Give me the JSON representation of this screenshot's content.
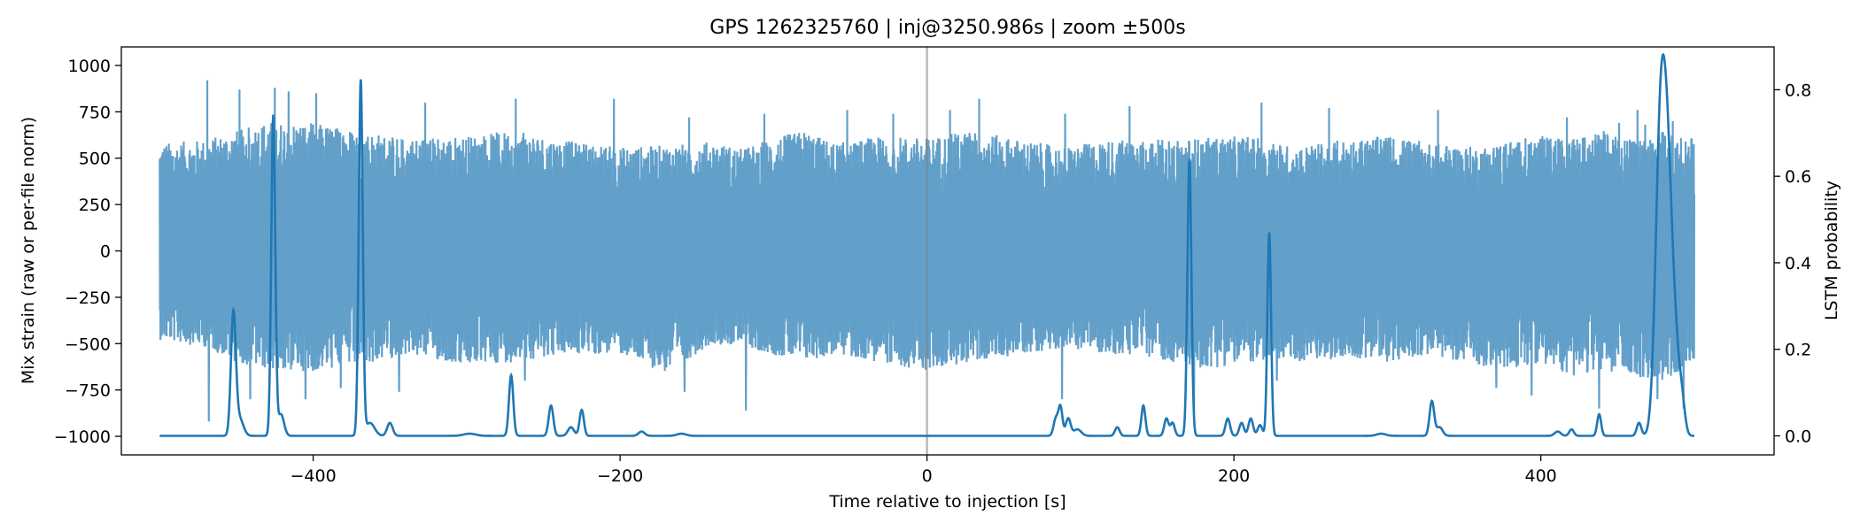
{
  "chart_data": {
    "type": "line",
    "title": "GPS 1262325760 | inj@3250.986s | zoom ±500s",
    "xlabel": "Time relative to injection [s]",
    "ylabel": "Mix strain (raw or per-file norm)",
    "y2label": "LSTM probability",
    "xlim": [
      -525,
      552
    ],
    "ylim": [
      -1100,
      1100
    ],
    "y2lim": [
      -0.044,
      0.899
    ],
    "x_ticks": [
      -400,
      -200,
      0,
      200,
      400
    ],
    "x_tick_labels": [
      "−400",
      "−200",
      "0",
      "200",
      "400"
    ],
    "y_ticks": [
      -1000,
      -750,
      -500,
      -250,
      0,
      250,
      500,
      750,
      1000
    ],
    "y_tick_labels": [
      "−1000",
      "−750",
      "−500",
      "−250",
      "0",
      "250",
      "500",
      "750",
      "1000"
    ],
    "y2_ticks": [
      0.0,
      0.2,
      0.4,
      0.6,
      0.8
    ],
    "y2_tick_labels": [
      "0.0",
      "0.2",
      "0.4",
      "0.6",
      "0.8"
    ],
    "grid": false,
    "injection_marker_x": 0,
    "series": [
      {
        "axis": "left",
        "color": "#1f77b4",
        "opacity": 0.7,
        "description_range": [
          -500,
          500
        ],
        "envelope_t": [
          -500,
          -470,
          -450,
          -430,
          -400,
          -370,
          -340,
          -300,
          -270,
          -240,
          -200,
          -170,
          -140,
          -120,
          -100,
          -80,
          -60,
          -30,
          0,
          30,
          60,
          90,
          120,
          150,
          180,
          210,
          240,
          270,
          300,
          330,
          360,
          380,
          400,
          420,
          440,
          460,
          480,
          500
        ],
        "envelope_max": [
          580,
          600,
          650,
          700,
          690,
          650,
          610,
          620,
          650,
          600,
          560,
          570,
          590,
          550,
          610,
          650,
          580,
          620,
          610,
          650,
          600,
          560,
          600,
          600,
          610,
          620,
          560,
          600,
          620,
          580,
          560,
          600,
          620,
          600,
          650,
          600,
          650,
          620
        ],
        "envelope_min": [
          -480,
          -520,
          -600,
          -640,
          -650,
          -620,
          -560,
          -620,
          -600,
          -560,
          -560,
          -660,
          -500,
          -520,
          -560,
          -600,
          -560,
          -600,
          -650,
          -600,
          -560,
          -520,
          -560,
          -580,
          -640,
          -600,
          -600,
          -580,
          -600,
          -560,
          -620,
          -640,
          -600,
          -680,
          -640,
          -680,
          -700,
          -600
        ],
        "spikes": [
          {
            "t": -469,
            "y": 920
          },
          {
            "t": -468,
            "y": -920
          },
          {
            "t": -448,
            "y": 870
          },
          {
            "t": -441,
            "y": -800
          },
          {
            "t": -425,
            "y": 880
          },
          {
            "t": -416,
            "y": 860
          },
          {
            "t": -405,
            "y": -800
          },
          {
            "t": -398,
            "y": 850
          },
          {
            "t": -382,
            "y": -740
          },
          {
            "t": -344,
            "y": -760
          },
          {
            "t": -327,
            "y": 800
          },
          {
            "t": -268,
            "y": 820
          },
          {
            "t": -262,
            "y": -700
          },
          {
            "t": -204,
            "y": 820
          },
          {
            "t": -158,
            "y": -760
          },
          {
            "t": -155,
            "y": 720
          },
          {
            "t": -118,
            "y": -860
          },
          {
            "t": -106,
            "y": 740
          },
          {
            "t": -52,
            "y": 760
          },
          {
            "t": -22,
            "y": 740
          },
          {
            "t": 15,
            "y": 760
          },
          {
            "t": 34,
            "y": 820
          },
          {
            "t": 88,
            "y": -800
          },
          {
            "t": 90,
            "y": 740
          },
          {
            "t": 132,
            "y": 780
          },
          {
            "t": 174,
            "y": -860
          },
          {
            "t": 218,
            "y": 800
          },
          {
            "t": 228,
            "y": -700
          },
          {
            "t": 262,
            "y": 770
          },
          {
            "t": 333,
            "y": 760
          },
          {
            "t": 371,
            "y": -740
          },
          {
            "t": 394,
            "y": -780
          },
          {
            "t": 417,
            "y": 720
          },
          {
            "t": 438,
            "y": -850
          },
          {
            "t": 451,
            "y": 690
          },
          {
            "t": 463,
            "y": 760
          },
          {
            "t": 468,
            "y": 680
          },
          {
            "t": 476,
            "y": -800
          },
          {
            "t": 486,
            "y": 700
          },
          {
            "t": 493,
            "y": -850
          }
        ]
      },
      {
        "axis": "right",
        "color": "#1f77b4",
        "opacity": 1.0,
        "baseline": 0.0,
        "x_range": [
          -500,
          500
        ],
        "peaks": [
          {
            "t": -452,
            "p": 0.28,
            "w": 1.6
          },
          {
            "t": -448,
            "p": 0.04,
            "w": 2.5
          },
          {
            "t": -426,
            "p": 0.74,
            "w": 1.3
          },
          {
            "t": -421,
            "p": 0.05,
            "w": 2.0
          },
          {
            "t": -369,
            "p": 0.82,
            "w": 1.3
          },
          {
            "t": -363,
            "p": 0.03,
            "w": 3.0
          },
          {
            "t": -350,
            "p": 0.03,
            "w": 1.8
          },
          {
            "t": -298,
            "p": 0.005,
            "w": 4.0
          },
          {
            "t": -271,
            "p": 0.14,
            "w": 1.4
          },
          {
            "t": -245,
            "p": 0.07,
            "w": 1.5
          },
          {
            "t": -232,
            "p": 0.02,
            "w": 2.0
          },
          {
            "t": -225,
            "p": 0.06,
            "w": 1.4
          },
          {
            "t": -186,
            "p": 0.01,
            "w": 2.0
          },
          {
            "t": -160,
            "p": 0.005,
            "w": 3.0
          },
          {
            "t": 84,
            "p": 0.04,
            "w": 1.5
          },
          {
            "t": 87,
            "p": 0.065,
            "w": 1.3
          },
          {
            "t": 92,
            "p": 0.04,
            "w": 1.6
          },
          {
            "t": 98,
            "p": 0.015,
            "w": 2.5
          },
          {
            "t": 124,
            "p": 0.02,
            "w": 1.5
          },
          {
            "t": 141,
            "p": 0.07,
            "w": 1.3
          },
          {
            "t": 156,
            "p": 0.04,
            "w": 1.4
          },
          {
            "t": 160,
            "p": 0.03,
            "w": 1.4
          },
          {
            "t": 171,
            "p": 0.64,
            "w": 1.3
          },
          {
            "t": 196,
            "p": 0.04,
            "w": 1.5
          },
          {
            "t": 205,
            "p": 0.03,
            "w": 1.5
          },
          {
            "t": 211,
            "p": 0.04,
            "w": 1.5
          },
          {
            "t": 217,
            "p": 0.025,
            "w": 1.5
          },
          {
            "t": 223,
            "p": 0.47,
            "w": 1.2
          },
          {
            "t": 296,
            "p": 0.005,
            "w": 3.0
          },
          {
            "t": 329,
            "p": 0.08,
            "w": 1.5
          },
          {
            "t": 334,
            "p": 0.02,
            "w": 2.0
          },
          {
            "t": 411,
            "p": 0.01,
            "w": 2.0
          },
          {
            "t": 420,
            "p": 0.015,
            "w": 1.5
          },
          {
            "t": 438,
            "p": 0.05,
            "w": 1.3
          },
          {
            "t": 464,
            "p": 0.03,
            "w": 1.5
          },
          {
            "t": 478,
            "p": 0.7,
            "w": 3.2
          },
          {
            "t": 483,
            "p": 0.5,
            "w": 3.0
          },
          {
            "t": 488,
            "p": 0.15,
            "w": 2.5
          },
          {
            "t": 492,
            "p": 0.07,
            "w": 2.0
          }
        ]
      }
    ]
  }
}
